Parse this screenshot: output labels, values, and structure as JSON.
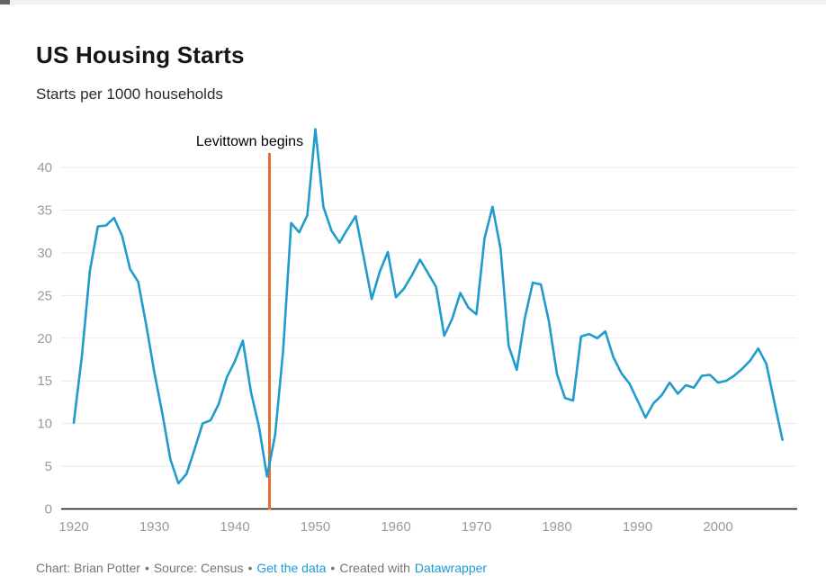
{
  "header": {
    "title": "US Housing Starts",
    "subtitle": "Starts per 1000 households"
  },
  "chart_data": {
    "type": "line",
    "title": "US Housing Starts",
    "subtitle": "Starts per 1000 households",
    "series_name": "US housing starts per 1000 households",
    "x": [
      1920,
      1921,
      1922,
      1923,
      1924,
      1925,
      1926,
      1927,
      1928,
      1929,
      1930,
      1931,
      1932,
      1933,
      1934,
      1935,
      1936,
      1937,
      1938,
      1939,
      1940,
      1941,
      1942,
      1943,
      1944,
      1945,
      1946,
      1947,
      1948,
      1949,
      1950,
      1951,
      1952,
      1953,
      1954,
      1955,
      1956,
      1957,
      1958,
      1959,
      1960,
      1961,
      1962,
      1963,
      1964,
      1965,
      1966,
      1967,
      1968,
      1969,
      1970,
      1971,
      1972,
      1973,
      1974,
      1975,
      1976,
      1977,
      1978,
      1979,
      1980,
      1981,
      1982,
      1983,
      1984,
      1985,
      1986,
      1987,
      1988,
      1989,
      1990,
      1991,
      1992,
      1993,
      1994,
      1995,
      1996,
      1997,
      1998,
      1999,
      2000,
      2001,
      2002,
      2003,
      2004,
      2005,
      2006,
      2007,
      2008
    ],
    "values": [
      10.1,
      17.9,
      27.9,
      33.1,
      33.2,
      34.1,
      32.0,
      28.1,
      26.6,
      21.5,
      16.0,
      11.2,
      5.8,
      3.0,
      4.1,
      7.0,
      10.0,
      10.4,
      12.3,
      15.4,
      17.3,
      19.7,
      13.7,
      9.6,
      3.8,
      8.7,
      18.6,
      33.5,
      32.4,
      34.4,
      44.5,
      35.4,
      32.6,
      31.2,
      32.8,
      34.3,
      29.5,
      24.6,
      27.8,
      30.1,
      24.8,
      25.8,
      27.4,
      29.2,
      27.6,
      26.0,
      20.3,
      22.3,
      25.3,
      23.6,
      22.8,
      31.7,
      35.4,
      30.5,
      19.1,
      16.3,
      22.3,
      26.5,
      26.3,
      22.0,
      15.8,
      13.0,
      12.7,
      20.2,
      20.5,
      20.0,
      20.8,
      17.8,
      15.9,
      14.7,
      12.7,
      10.7,
      12.4,
      13.3,
      14.8,
      13.5,
      14.5,
      14.2,
      15.6,
      15.7,
      14.8,
      15.0,
      15.6,
      16.4,
      17.4,
      18.8,
      17.0,
      12.5,
      8.1
    ],
    "yticks": [
      0,
      5,
      10,
      15,
      20,
      25,
      30,
      35,
      40
    ],
    "xticks": [
      1920,
      1930,
      1940,
      1950,
      1960,
      1970,
      1980,
      1990,
      2000
    ],
    "ylim": [
      0,
      45
    ],
    "xlim": [
      1919.5,
      2009.5
    ],
    "grid": "horizontal",
    "legend": "none",
    "annotation": {
      "label": "Levittown begins",
      "year": 1944.3
    },
    "colors": {
      "line": "#209bcd",
      "annotation_line": "#e0702f",
      "annotation_text": "#000000",
      "tick_text": "#9a9a9a",
      "grid": "#e9e9e9",
      "baseline": "#111111"
    }
  },
  "footer": {
    "credit": "Chart: Brian Potter",
    "source": "Source: Census",
    "bullet": "•",
    "get_data_link": "Get the data",
    "created_with": "Created with",
    "datawrapper_link": "Datawrapper"
  }
}
